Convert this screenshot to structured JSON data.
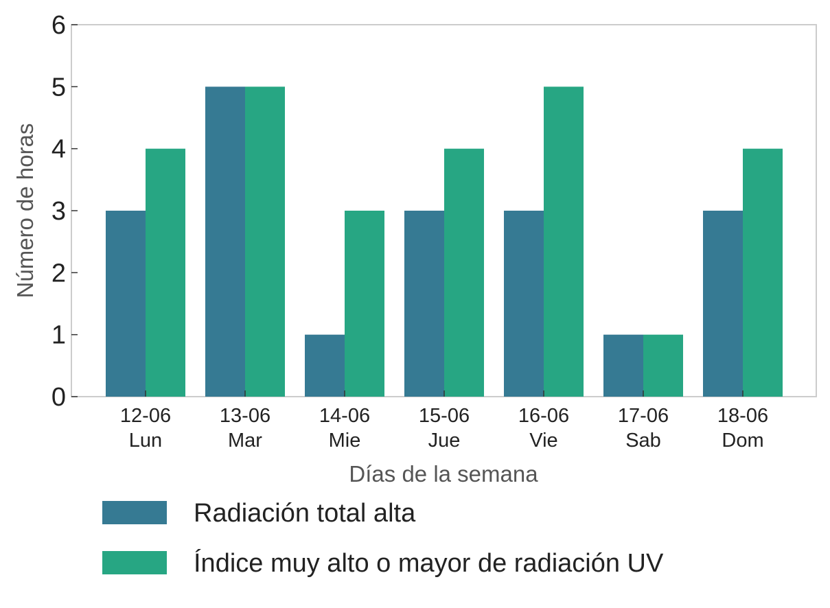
{
  "chart_data": {
    "type": "bar",
    "categories": [
      {
        "date": "12-06",
        "day": "Lun"
      },
      {
        "date": "13-06",
        "day": "Mar"
      },
      {
        "date": "14-06",
        "day": "Mie"
      },
      {
        "date": "15-06",
        "day": "Jue"
      },
      {
        "date": "16-06",
        "day": "Vie"
      },
      {
        "date": "17-06",
        "day": "Sab"
      },
      {
        "date": "18-06",
        "day": "Dom"
      }
    ],
    "series": [
      {
        "name": "Radiación total alta",
        "color": "#367a93",
        "values": [
          3,
          5,
          1,
          3,
          3,
          1,
          3
        ]
      },
      {
        "name": "Índice muy alto o mayor de radiación UV",
        "color": "#27a683",
        "values": [
          4,
          5,
          3,
          4,
          5,
          1,
          4
        ]
      }
    ],
    "xlabel": "Días de la semana",
    "ylabel": "Número de horas",
    "ylim": [
      0,
      6
    ],
    "yticks": [
      0,
      1,
      2,
      3,
      4,
      5,
      6
    ],
    "grid": false,
    "legend_position": "bottom"
  }
}
